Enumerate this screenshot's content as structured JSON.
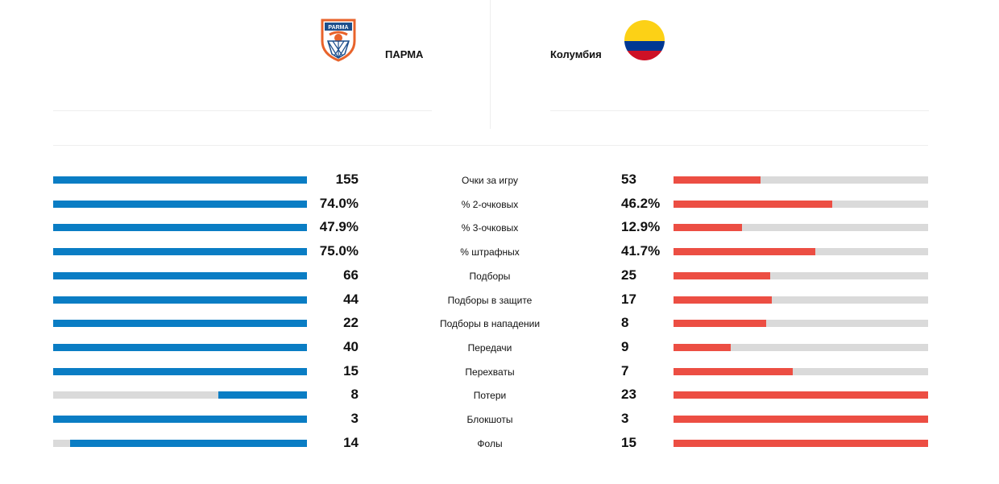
{
  "teams": {
    "left": {
      "name": "ПАРМА",
      "logo_text": "PARMA",
      "color": "#0a7dc4"
    },
    "right": {
      "name": "Колумбия",
      "flag_colors": [
        "#FCD116",
        "#003893",
        "#CE1126"
      ],
      "color": "#ec4e43"
    }
  },
  "stats": [
    {
      "label": "Очки за игру",
      "left": "155",
      "right": "53",
      "left_share": 1.0,
      "right_share": 0.342
    },
    {
      "label": "% 2-очковых",
      "left": "74.0%",
      "right": "46.2%",
      "left_share": 1.0,
      "right_share": 0.624
    },
    {
      "label": "% 3-очковых",
      "left": "47.9%",
      "right": "12.9%",
      "left_share": 1.0,
      "right_share": 0.269
    },
    {
      "label": "% штрафных",
      "left": "75.0%",
      "right": "41.7%",
      "left_share": 1.0,
      "right_share": 0.556
    },
    {
      "label": "Подборы",
      "left": "66",
      "right": "25",
      "left_share": 1.0,
      "right_share": 0.379
    },
    {
      "label": "Подборы в защите",
      "left": "44",
      "right": "17",
      "left_share": 1.0,
      "right_share": 0.386
    },
    {
      "label": "Подборы в нападении",
      "left": "22",
      "right": "8",
      "left_share": 1.0,
      "right_share": 0.364
    },
    {
      "label": "Передачи",
      "left": "40",
      "right": "9",
      "left_share": 1.0,
      "right_share": 0.225
    },
    {
      "label": "Перехваты",
      "left": "15",
      "right": "7",
      "left_share": 1.0,
      "right_share": 0.467
    },
    {
      "label": "Потери",
      "left": "8",
      "right": "23",
      "left_share": 0.348,
      "right_share": 1.0
    },
    {
      "label": "Блокшоты",
      "left": "3",
      "right": "3",
      "left_share": 1.0,
      "right_share": 1.0
    },
    {
      "label": "Фолы",
      "left": "14",
      "right": "15",
      "left_share": 0.933,
      "right_share": 1.0
    }
  ]
}
